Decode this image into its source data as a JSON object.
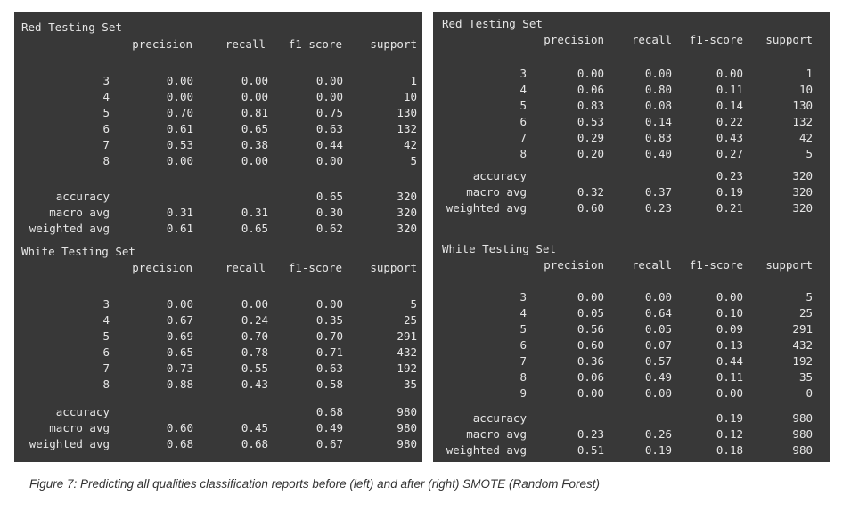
{
  "panels": [
    {
      "name": "left",
      "sections": [
        {
          "title": "Red Testing Set",
          "headers": [
            "precision",
            "recall",
            "f1-score",
            "support"
          ],
          "rows": [
            {
              "label": "3",
              "precision": "0.00",
              "recall": "0.00",
              "f1": "0.00",
              "support": "1"
            },
            {
              "label": "4",
              "precision": "0.00",
              "recall": "0.00",
              "f1": "0.00",
              "support": "10"
            },
            {
              "label": "5",
              "precision": "0.70",
              "recall": "0.81",
              "f1": "0.75",
              "support": "130"
            },
            {
              "label": "6",
              "precision": "0.61",
              "recall": "0.65",
              "f1": "0.63",
              "support": "132"
            },
            {
              "label": "7",
              "precision": "0.53",
              "recall": "0.38",
              "f1": "0.44",
              "support": "42"
            },
            {
              "label": "8",
              "precision": "0.00",
              "recall": "0.00",
              "f1": "0.00",
              "support": "5"
            }
          ],
          "summary": [
            {
              "label": "accuracy",
              "precision": "",
              "recall": "",
              "f1": "0.65",
              "support": "320"
            },
            {
              "label": "macro avg",
              "precision": "0.31",
              "recall": "0.31",
              "f1": "0.30",
              "support": "320"
            },
            {
              "label": "weighted avg",
              "precision": "0.61",
              "recall": "0.65",
              "f1": "0.62",
              "support": "320"
            }
          ]
        },
        {
          "title": "White Testing Set",
          "headers": [
            "precision",
            "recall",
            "f1-score",
            "support"
          ],
          "rows": [
            {
              "label": "3",
              "precision": "0.00",
              "recall": "0.00",
              "f1": "0.00",
              "support": "5"
            },
            {
              "label": "4",
              "precision": "0.67",
              "recall": "0.24",
              "f1": "0.35",
              "support": "25"
            },
            {
              "label": "5",
              "precision": "0.69",
              "recall": "0.70",
              "f1": "0.70",
              "support": "291"
            },
            {
              "label": "6",
              "precision": "0.65",
              "recall": "0.78",
              "f1": "0.71",
              "support": "432"
            },
            {
              "label": "7",
              "precision": "0.73",
              "recall": "0.55",
              "f1": "0.63",
              "support": "192"
            },
            {
              "label": "8",
              "precision": "0.88",
              "recall": "0.43",
              "f1": "0.58",
              "support": "35"
            }
          ],
          "summary": [
            {
              "label": "accuracy",
              "precision": "",
              "recall": "",
              "f1": "0.68",
              "support": "980"
            },
            {
              "label": "macro avg",
              "precision": "0.60",
              "recall": "0.45",
              "f1": "0.49",
              "support": "980"
            },
            {
              "label": "weighted avg",
              "precision": "0.68",
              "recall": "0.68",
              "f1": "0.67",
              "support": "980"
            }
          ]
        }
      ]
    },
    {
      "name": "right",
      "sections": [
        {
          "title": "Red Testing Set",
          "headers": [
            "precision",
            "recall",
            "f1-score",
            "support"
          ],
          "rows": [
            {
              "label": "3",
              "precision": "0.00",
              "recall": "0.00",
              "f1": "0.00",
              "support": "1"
            },
            {
              "label": "4",
              "precision": "0.06",
              "recall": "0.80",
              "f1": "0.11",
              "support": "10"
            },
            {
              "label": "5",
              "precision": "0.83",
              "recall": "0.08",
              "f1": "0.14",
              "support": "130"
            },
            {
              "label": "6",
              "precision": "0.53",
              "recall": "0.14",
              "f1": "0.22",
              "support": "132"
            },
            {
              "label": "7",
              "precision": "0.29",
              "recall": "0.83",
              "f1": "0.43",
              "support": "42"
            },
            {
              "label": "8",
              "precision": "0.20",
              "recall": "0.40",
              "f1": "0.27",
              "support": "5"
            }
          ],
          "summary": [
            {
              "label": "accuracy",
              "precision": "",
              "recall": "",
              "f1": "0.23",
              "support": "320"
            },
            {
              "label": "macro avg",
              "precision": "0.32",
              "recall": "0.37",
              "f1": "0.19",
              "support": "320"
            },
            {
              "label": "weighted avg",
              "precision": "0.60",
              "recall": "0.23",
              "f1": "0.21",
              "support": "320"
            }
          ]
        },
        {
          "title": "White Testing Set",
          "headers": [
            "precision",
            "recall",
            "f1-score",
            "support"
          ],
          "rows": [
            {
              "label": "3",
              "precision": "0.00",
              "recall": "0.00",
              "f1": "0.00",
              "support": "5"
            },
            {
              "label": "4",
              "precision": "0.05",
              "recall": "0.64",
              "f1": "0.10",
              "support": "25"
            },
            {
              "label": "5",
              "precision": "0.56",
              "recall": "0.05",
              "f1": "0.09",
              "support": "291"
            },
            {
              "label": "6",
              "precision": "0.60",
              "recall": "0.07",
              "f1": "0.13",
              "support": "432"
            },
            {
              "label": "7",
              "precision": "0.36",
              "recall": "0.57",
              "f1": "0.44",
              "support": "192"
            },
            {
              "label": "8",
              "precision": "0.06",
              "recall": "0.49",
              "f1": "0.11",
              "support": "35"
            },
            {
              "label": "9",
              "precision": "0.00",
              "recall": "0.00",
              "f1": "0.00",
              "support": "0"
            }
          ],
          "summary": [
            {
              "label": "accuracy",
              "precision": "",
              "recall": "",
              "f1": "0.19",
              "support": "980"
            },
            {
              "label": "macro avg",
              "precision": "0.23",
              "recall": "0.26",
              "f1": "0.12",
              "support": "980"
            },
            {
              "label": "weighted avg",
              "precision": "0.51",
              "recall": "0.19",
              "f1": "0.18",
              "support": "980"
            }
          ]
        }
      ]
    }
  ],
  "caption": "Figure 7: Predicting all qualities classification reports before (left) and after (right) SMOTE (Random Forest)"
}
